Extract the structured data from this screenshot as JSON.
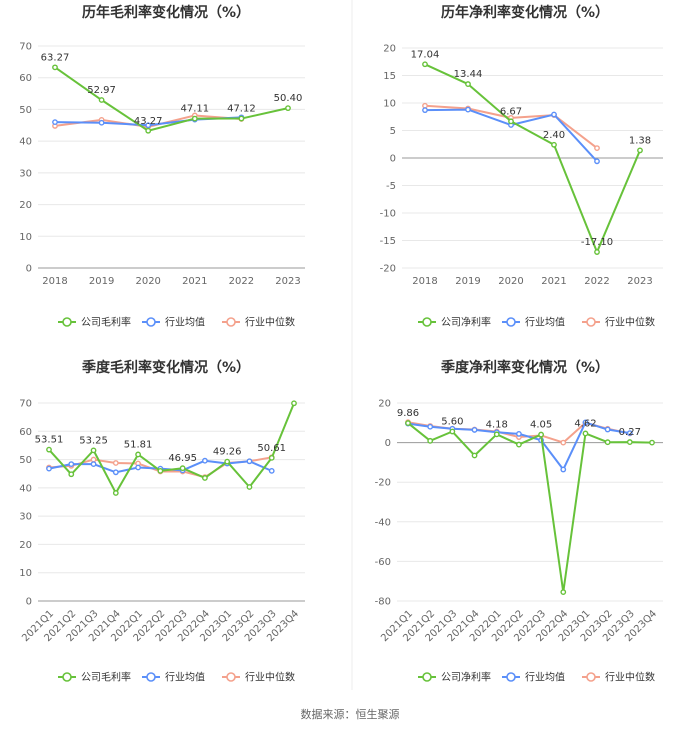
{
  "colors": {
    "company": "#67c23a",
    "avg": "#5b8ff9",
    "median": "#f4a18c"
  },
  "legend": {
    "gross": [
      "公司毛利率",
      "行业均值",
      "行业中位数"
    ],
    "net": [
      "公司净利率",
      "行业均值",
      "行业中位数"
    ]
  },
  "footer": "数据来源：恒生聚源",
  "chart_data": [
    {
      "id": "annual-gross",
      "type": "line",
      "title": "历年毛利率变化情况（%）",
      "categories": [
        "2018",
        "2019",
        "2020",
        "2021",
        "2022",
        "2023"
      ],
      "ylim": [
        0,
        70
      ],
      "yticks": [
        0,
        10,
        20,
        30,
        40,
        50,
        60,
        70
      ],
      "legend_key": "gross",
      "rotate_x": false,
      "series": [
        {
          "name": "公司毛利率",
          "color_key": "company",
          "values": [
            63.27,
            52.97,
            43.27,
            47.11,
            47.12,
            50.4
          ]
        },
        {
          "name": "行业均值",
          "color_key": "avg",
          "values": [
            46.0,
            45.8,
            45.0,
            46.8,
            47.5,
            null
          ]
        },
        {
          "name": "行业中位数",
          "color_key": "median",
          "values": [
            44.8,
            46.7,
            44.5,
            48.1,
            47.0,
            null
          ]
        }
      ],
      "labels": [
        {
          "i": 0,
          "text": "63.27"
        },
        {
          "i": 1,
          "text": "52.97"
        },
        {
          "i": 2,
          "text": "43.27"
        },
        {
          "i": 3,
          "text": "47.11"
        },
        {
          "i": 4,
          "text": "47.12"
        },
        {
          "i": 5,
          "text": "50.40"
        }
      ]
    },
    {
      "id": "annual-net",
      "type": "line",
      "title": "历年净利率变化情况（%）",
      "categories": [
        "2018",
        "2019",
        "2020",
        "2021",
        "2022",
        "2023"
      ],
      "ylim": [
        -20,
        20
      ],
      "yticks": [
        -20,
        -15,
        -10,
        -5,
        0,
        5,
        10,
        15,
        20
      ],
      "legend_key": "net",
      "rotate_x": false,
      "series": [
        {
          "name": "公司净利率",
          "color_key": "company",
          "values": [
            17.04,
            13.44,
            6.67,
            2.4,
            -17.1,
            1.38
          ]
        },
        {
          "name": "行业均值",
          "color_key": "avg",
          "values": [
            8.7,
            8.8,
            6.0,
            7.9,
            -0.6,
            null
          ]
        },
        {
          "name": "行业中位数",
          "color_key": "median",
          "values": [
            9.5,
            9.0,
            7.3,
            7.8,
            1.8,
            null
          ]
        }
      ],
      "labels": [
        {
          "i": 0,
          "text": "17.04"
        },
        {
          "i": 1,
          "text": "13.44"
        },
        {
          "i": 2,
          "text": "6.67"
        },
        {
          "i": 3,
          "text": "2.40"
        },
        {
          "i": 4,
          "text": "-17.10"
        },
        {
          "i": 5,
          "text": "1.38"
        }
      ]
    },
    {
      "id": "quarterly-gross",
      "type": "line",
      "title": "季度毛利率变化情况（%）",
      "categories": [
        "2021Q1",
        "2021Q2",
        "2021Q3",
        "2021Q4",
        "2022Q1",
        "2022Q2",
        "2022Q3",
        "2022Q4",
        "2023Q1",
        "2023Q2",
        "2023Q3",
        "2023Q4"
      ],
      "ylim": [
        0,
        70
      ],
      "yticks": [
        0,
        10,
        20,
        30,
        40,
        50,
        60,
        70
      ],
      "legend_key": "gross",
      "rotate_x": true,
      "series": [
        {
          "name": "公司毛利率",
          "color_key": "company",
          "values": [
            53.51,
            44.8,
            53.25,
            38.2,
            51.81,
            46.0,
            46.95,
            43.5,
            49.26,
            40.3,
            50.61,
            69.9
          ]
        },
        {
          "name": "行业均值",
          "color_key": "avg",
          "values": [
            46.8,
            48.4,
            48.4,
            45.5,
            47.2,
            46.8,
            46.2,
            49.6,
            48.6,
            49.4,
            46.0,
            null
          ]
        },
        {
          "name": "行业中位数",
          "color_key": "median",
          "values": [
            47.2,
            47.8,
            50.0,
            48.8,
            48.6,
            45.8,
            45.8,
            43.8,
            48.8,
            49.4,
            50.8,
            null
          ]
        }
      ],
      "labels": [
        {
          "i": 0,
          "text": "53.51"
        },
        {
          "i": 2,
          "text": "53.25"
        },
        {
          "i": 4,
          "text": "51.81"
        },
        {
          "i": 6,
          "text": "46.95"
        },
        {
          "i": 8,
          "text": "49.26"
        },
        {
          "i": 10,
          "text": "50.61"
        }
      ]
    },
    {
      "id": "quarterly-net",
      "type": "line",
      "title": "季度净利率变化情况（%）",
      "categories": [
        "2021Q1",
        "2021Q2",
        "2021Q3",
        "2021Q4",
        "2022Q1",
        "2022Q2",
        "2022Q3",
        "2022Q4",
        "2023Q1",
        "2023Q2",
        "2023Q3",
        "2023Q4"
      ],
      "ylim": [
        -80,
        20
      ],
      "yticks": [
        -80,
        -60,
        -40,
        -20,
        0,
        20
      ],
      "legend_key": "net",
      "rotate_x": true,
      "series": [
        {
          "name": "公司净利率",
          "color_key": "company",
          "values": [
            9.86,
            0.9,
            5.6,
            -6.5,
            4.18,
            -1.0,
            4.05,
            -75.5,
            4.62,
            0.2,
            0.27,
            0.0
          ]
        },
        {
          "name": "行业均值",
          "color_key": "avg",
          "values": [
            9.6,
            8.0,
            7.0,
            6.4,
            5.2,
            4.4,
            1.2,
            -13.6,
            10.2,
            6.6,
            4.8,
            null
          ]
        },
        {
          "name": "行业中位数",
          "color_key": "median",
          "values": [
            10.3,
            8.4,
            7.0,
            6.6,
            5.6,
            2.8,
            3.6,
            0.0,
            10.0,
            7.0,
            4.6,
            null
          ]
        }
      ],
      "labels": [
        {
          "i": 0,
          "text": "9.86"
        },
        {
          "i": 2,
          "text": "5.60"
        },
        {
          "i": 4,
          "text": "4.18"
        },
        {
          "i": 6,
          "text": "4.05"
        },
        {
          "i": 8,
          "text": "4.62"
        },
        {
          "i": 10,
          "text": "0.27"
        }
      ]
    }
  ]
}
